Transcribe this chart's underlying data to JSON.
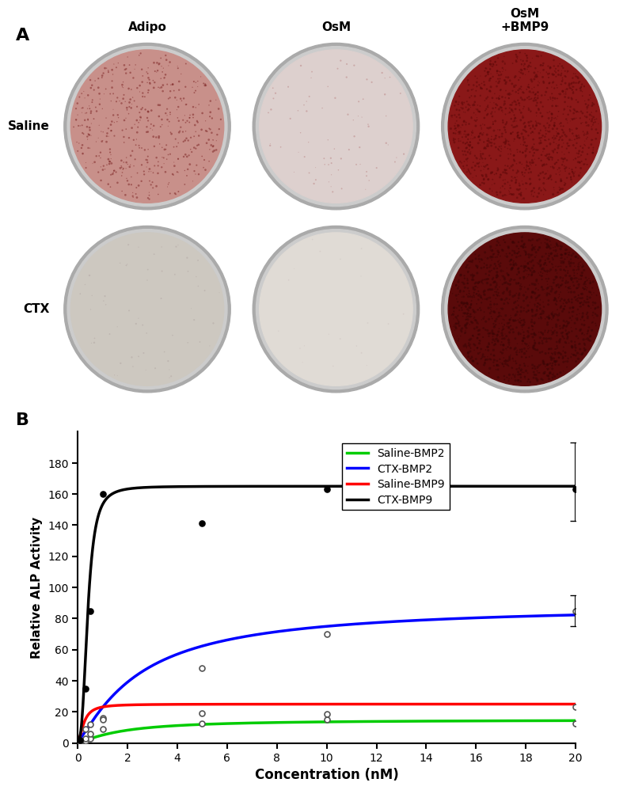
{
  "panel_A": {
    "label": "A",
    "col_labels": [
      "Adipo",
      "OsM",
      "OsM\n+BMP9"
    ],
    "row_labels": [
      "Saline",
      "CTX"
    ],
    "bg_color": "#c8bfb5",
    "dish_configs": [
      {
        "bg": "#c8908a",
        "spot_color": "#7a2020",
        "n_spots": 500,
        "spot_size_max": 4,
        "spot_alpha": 0.5
      },
      {
        "bg": "#ddd0ce",
        "spot_color": "#b07070",
        "n_spots": 80,
        "spot_size_max": 3,
        "spot_alpha": 0.4
      },
      {
        "bg": "#8a1818",
        "spot_color": "#5a0808",
        "n_spots": 1200,
        "spot_size_max": 5,
        "spot_alpha": 0.5
      },
      {
        "bg": "#cdc8c0",
        "spot_color": "#a09090",
        "n_spots": 60,
        "spot_size_max": 3,
        "spot_alpha": 0.3
      },
      {
        "bg": "#e0dbd5",
        "spot_color": "#c0b0b0",
        "n_spots": 20,
        "spot_size_max": 2,
        "spot_alpha": 0.3
      },
      {
        "bg": "#5a0a0a",
        "spot_color": "#380505",
        "n_spots": 1500,
        "spot_size_max": 6,
        "spot_alpha": 0.5
      }
    ]
  },
  "panel_B": {
    "label": "B",
    "xlabel": "Concentration (nM)",
    "ylabel": "Relative ALP Activity",
    "xlim": [
      0,
      20
    ],
    "ylim": [
      0,
      200
    ],
    "yticks": [
      0,
      20,
      40,
      60,
      80,
      100,
      120,
      140,
      160,
      180
    ],
    "xticks": [
      0,
      2,
      4,
      6,
      8,
      10,
      12,
      14,
      16,
      18,
      20
    ],
    "series": [
      {
        "name": "Saline-BMP2",
        "color": "#00CC00",
        "Vmax": 14.5,
        "Km": 1.8,
        "hill_n": 1.3,
        "baseline": 0.5,
        "data_x": [
          0.1,
          0.3,
          0.5,
          1.0,
          5.0,
          10.0,
          20.0
        ],
        "data_y": [
          0.5,
          1.5,
          3.0,
          9.0,
          12.5,
          15.0,
          12.5
        ],
        "data_open": true,
        "error_y_lo": null,
        "error_y_hi": null
      },
      {
        "name": "CTX-BMP2",
        "color": "#0000FF",
        "Vmax": 88.0,
        "Km": 2.5,
        "hill_n": 1.2,
        "baseline": 1.0,
        "data_x": [
          0.1,
          0.3,
          0.5,
          1.0,
          5.0,
          10.0,
          20.0
        ],
        "data_y": [
          1.0,
          3.0,
          6.0,
          16.0,
          48.0,
          70.0,
          85.0
        ],
        "data_open": true,
        "error_y_lo": 10.0,
        "error_y_hi": 10.0
      },
      {
        "name": "Saline-BMP9",
        "color": "#FF0000",
        "Vmax": 24.0,
        "Km": 0.25,
        "hill_n": 1.8,
        "baseline": 1.0,
        "data_x": [
          0.1,
          0.3,
          0.5,
          1.0,
          5.0,
          10.0,
          20.0
        ],
        "data_y": [
          1.5,
          9.0,
          12.0,
          15.0,
          19.0,
          18.5,
          23.0
        ],
        "data_open": true,
        "error_y_lo": null,
        "error_y_hi": null
      },
      {
        "name": "CTX-BMP9",
        "color": "#000000",
        "Vmax": 163.0,
        "Km": 0.4,
        "hill_n": 2.8,
        "baseline": 2.0,
        "data_x": [
          0.1,
          0.3,
          0.5,
          1.0,
          5.0,
          10.0,
          20.0
        ],
        "data_y": [
          2.0,
          35.0,
          85.0,
          160.0,
          141.0,
          163.0,
          163.0
        ],
        "data_open": false,
        "error_y_lo": 20.0,
        "error_y_hi": 30.0
      }
    ]
  }
}
